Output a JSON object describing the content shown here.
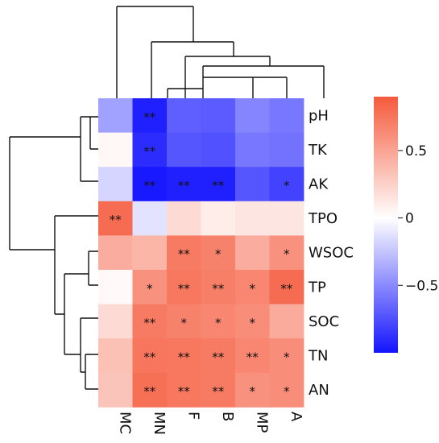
{
  "chart_data": {
    "type": "heatmap",
    "title": "",
    "xlabel": "",
    "ylabel": "",
    "columns": [
      "MC",
      "MN",
      "F",
      "B",
      "MP",
      "A"
    ],
    "rows": [
      "pH",
      "TK",
      "AK",
      "TPO",
      "WSOC",
      "TP",
      "SOC",
      "TN",
      "AN"
    ],
    "values": [
      [
        -0.4,
        -0.95,
        -0.68,
        -0.7,
        -0.52,
        -0.58
      ],
      [
        0.04,
        -0.9,
        -0.72,
        -0.74,
        -0.58,
        -0.6
      ],
      [
        -0.18,
        -0.98,
        -0.95,
        -0.95,
        -0.72,
        -0.8
      ],
      [
        0.8,
        -0.12,
        0.2,
        0.1,
        0.14,
        0.14
      ],
      [
        0.45,
        0.4,
        0.72,
        0.68,
        0.45,
        0.6
      ],
      [
        0.03,
        0.6,
        0.74,
        0.7,
        0.66,
        0.8
      ],
      [
        0.2,
        0.72,
        0.68,
        0.66,
        0.62,
        0.46
      ],
      [
        0.34,
        0.75,
        0.74,
        0.72,
        0.66,
        0.62
      ],
      [
        0.32,
        0.78,
        0.74,
        0.72,
        0.6,
        0.62
      ]
    ],
    "significance": [
      [
        "",
        "**",
        "",
        "",
        "",
        ""
      ],
      [
        "",
        "**",
        "",
        "",
        "",
        ""
      ],
      [
        "",
        "**",
        "**",
        "**",
        "",
        "*"
      ],
      [
        "**",
        "",
        "",
        "",
        "",
        ""
      ],
      [
        "",
        "",
        "**",
        "*",
        "",
        "*"
      ],
      [
        "",
        "*",
        "**",
        "**",
        "*",
        "**"
      ],
      [
        "",
        "**",
        "*",
        "*",
        "*",
        ""
      ],
      [
        "",
        "**",
        "**",
        "**",
        "**",
        "*"
      ],
      [
        "",
        "**",
        "**",
        "**",
        "*",
        "*"
      ]
    ],
    "color_scale": {
      "low": "#1414ff",
      "mid": "#ffffff",
      "high": "#f55a3c",
      "domain": [
        -1,
        0.9
      ],
      "ticks": [
        {
          "value": 0.5,
          "label": "0.5"
        },
        {
          "value": 0,
          "label": "0"
        },
        {
          "value": -0.5,
          "label": "−0.5"
        }
      ]
    },
    "legend_placement": "right",
    "column_dendrogram": "top",
    "row_dendrogram": "left",
    "grid": false
  }
}
